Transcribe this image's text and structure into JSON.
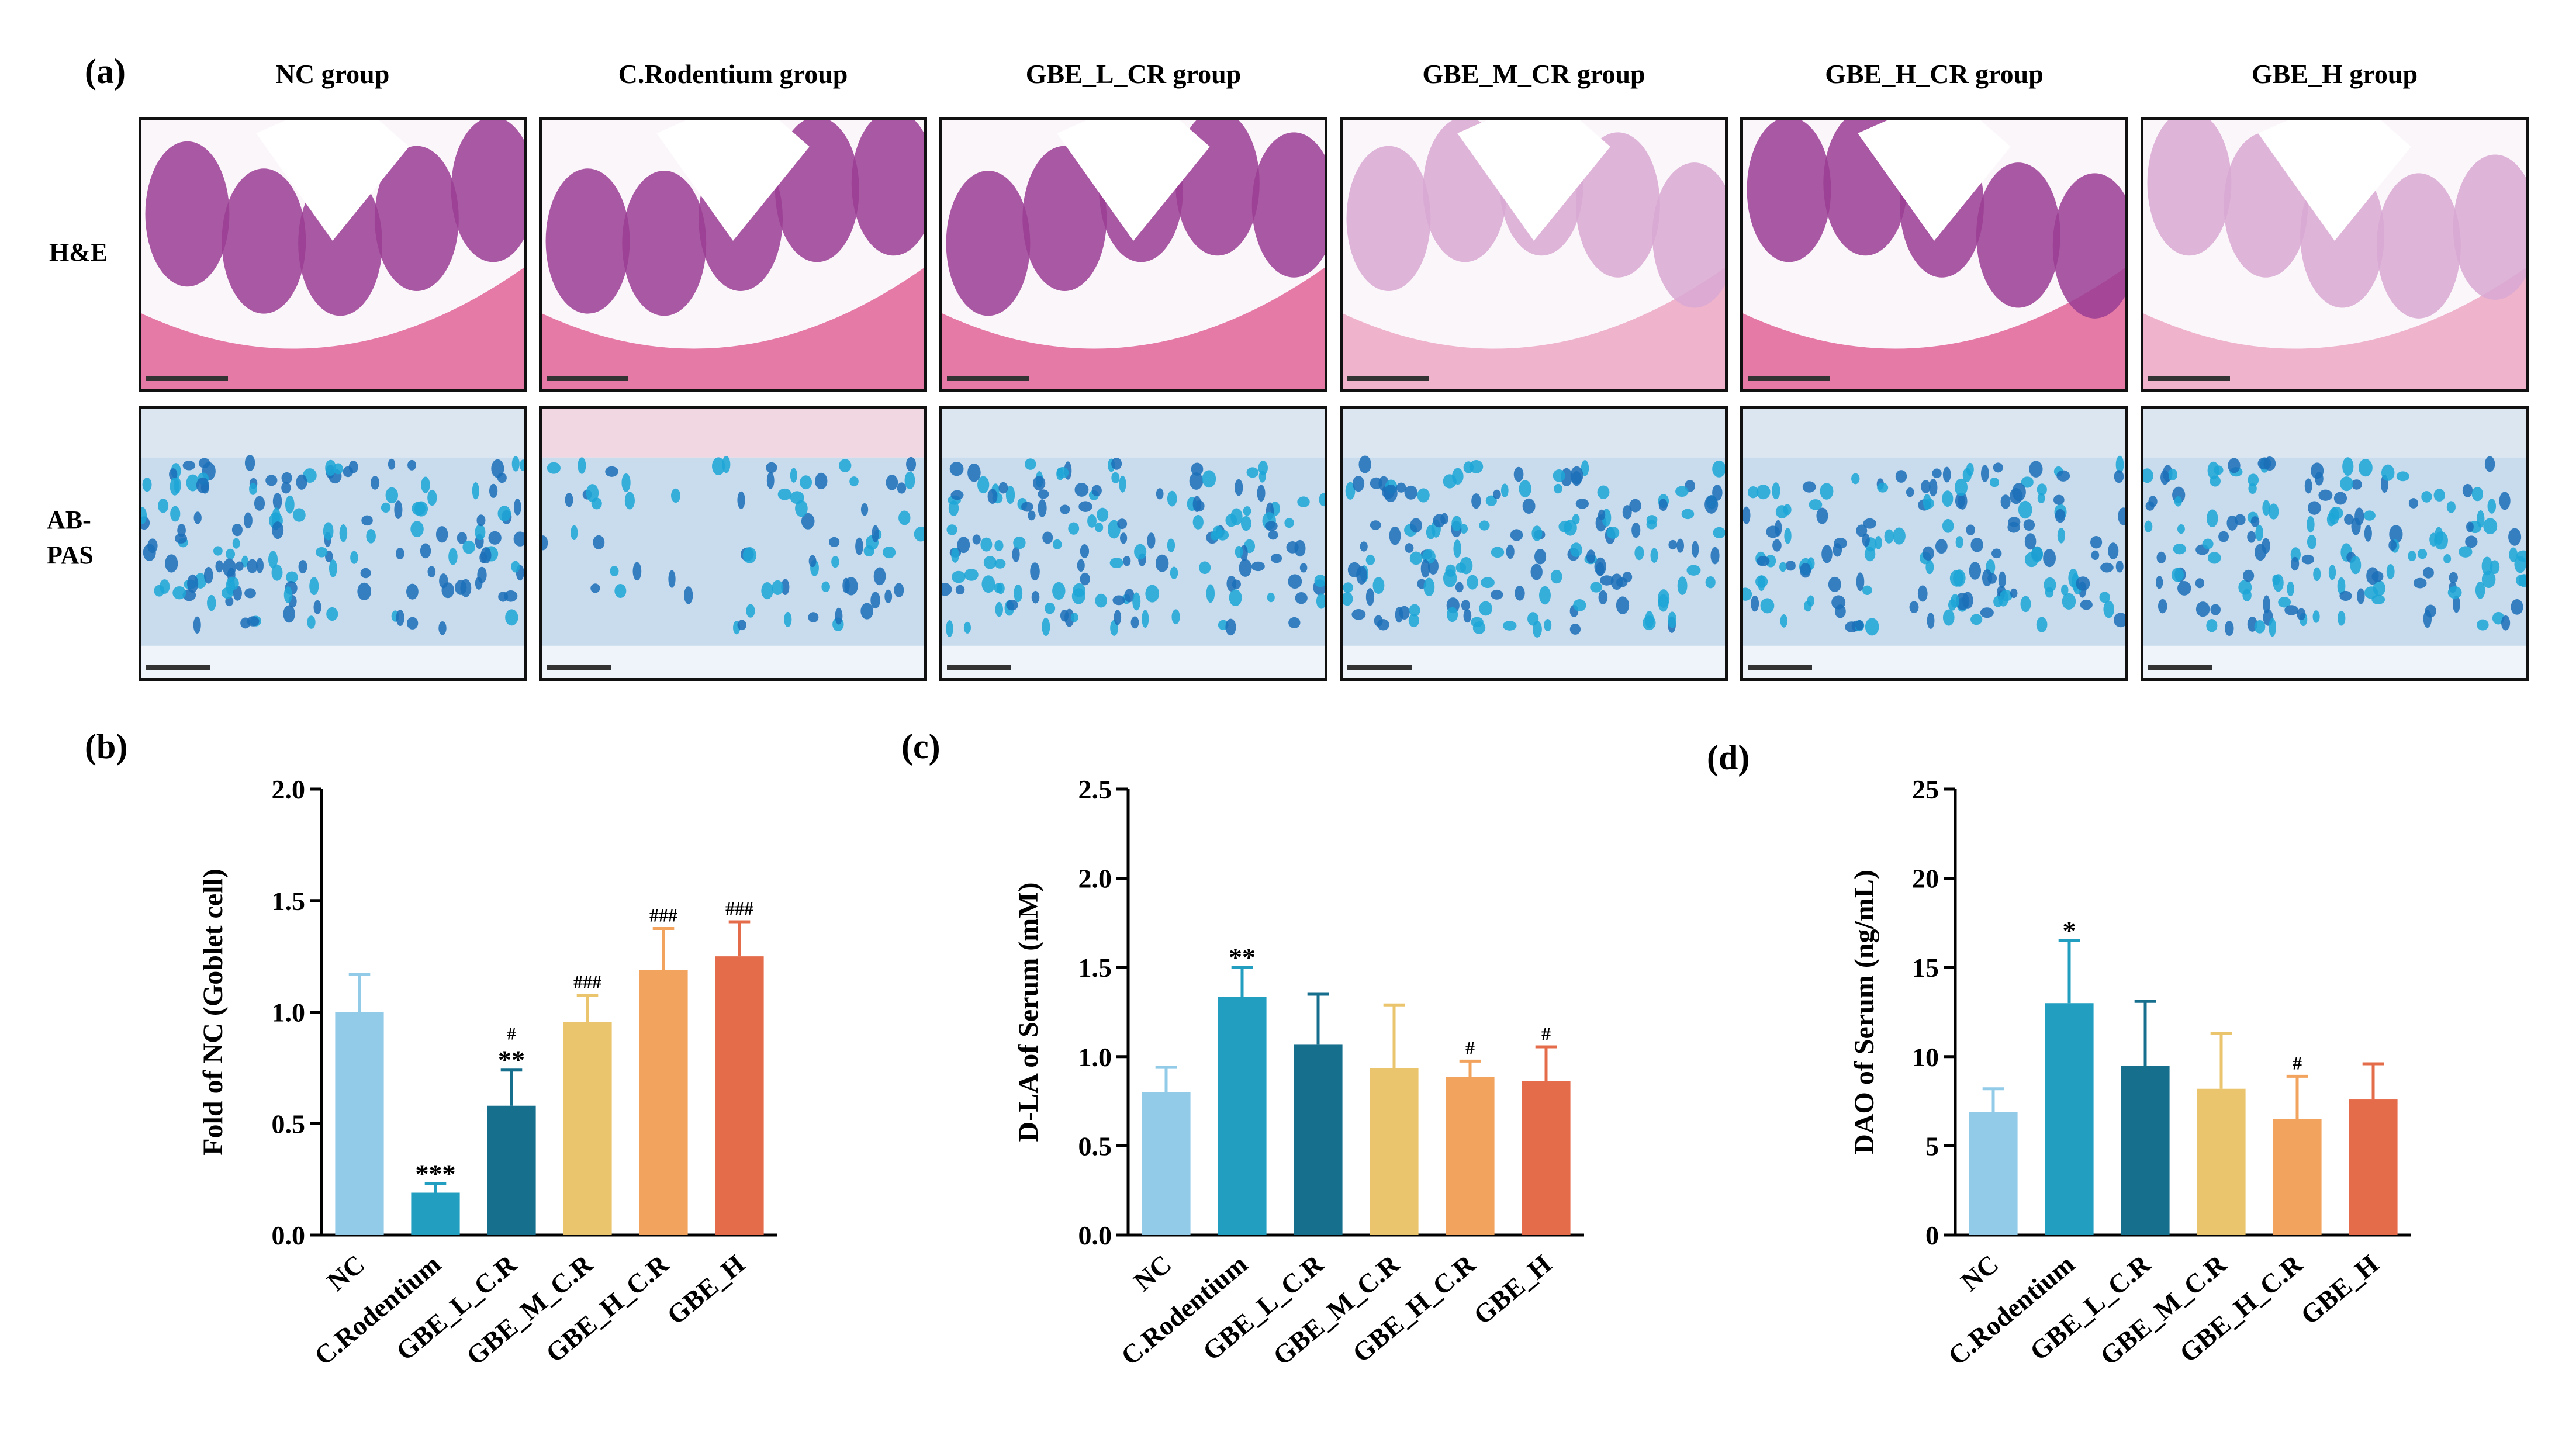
{
  "panel_a": {
    "letter": "(a)",
    "groups": [
      "NC group",
      "C.Rodentium group",
      "GBE_L_CR group",
      "GBE_M_CR group",
      "GBE_H_CR group",
      "GBE_H group"
    ],
    "rows": [
      "H&E",
      "AB-\nPAS"
    ]
  },
  "colors": [
    "#92cbe8",
    "#229fc0",
    "#176f8e",
    "#eac56d",
    "#f2a35e",
    "#e56c4b"
  ],
  "chart_data": [
    {
      "id": "b",
      "letter": "(b)",
      "type": "bar",
      "categories": [
        "NC",
        "C.Rodentium",
        "GBE_L_C.R",
        "GBE_M_C.R",
        "GBE_H_C.R",
        "GBE_H"
      ],
      "values": [
        1.0,
        0.19,
        0.58,
        0.955,
        1.19,
        1.25
      ],
      "errors": [
        0.17,
        0.04,
        0.16,
        0.12,
        0.185,
        0.155
      ],
      "annotations": [
        [
          "",
          ""
        ],
        [
          "***",
          ""
        ],
        [
          "**",
          "#"
        ],
        [
          "###",
          ""
        ],
        [
          "###",
          ""
        ],
        [
          "###",
          ""
        ]
      ],
      "ylabel": "Fold of NC (Goblet cell)",
      "ylim": [
        0,
        2.0
      ],
      "ticks": [
        "0.0",
        "0.5",
        "1.0",
        "1.5",
        "2.0"
      ],
      "tick_values": [
        0,
        0.5,
        1.0,
        1.5,
        2.0
      ]
    },
    {
      "id": "c",
      "letter": "(c)",
      "type": "bar",
      "categories": [
        "NC",
        "C.Rodentium",
        "GBE_L_C.R",
        "GBE_M_C.R",
        "GBE_H_C.R",
        "GBE_H"
      ],
      "values": [
        0.8,
        1.335,
        1.07,
        0.935,
        0.885,
        0.865
      ],
      "errors": [
        0.14,
        0.165,
        0.28,
        0.355,
        0.09,
        0.19
      ],
      "annotations": [
        [
          "",
          ""
        ],
        [
          "**",
          ""
        ],
        [
          "",
          ""
        ],
        [
          "",
          ""
        ],
        [
          "#",
          ""
        ],
        [
          "#",
          ""
        ]
      ],
      "ylabel": "D-LA of Serum (mM)",
      "ylim": [
        0,
        2.5
      ],
      "ticks": [
        "0.0",
        "0.5",
        "1.0",
        "1.5",
        "2.0",
        "2.5"
      ],
      "tick_values": [
        0,
        0.5,
        1.0,
        1.5,
        2.0,
        2.5
      ]
    },
    {
      "id": "d",
      "letter": "(d)",
      "type": "bar",
      "categories": [
        "NC",
        "C.Rodentium",
        "GBE_L_C.R",
        "GBE_M_C.R",
        "GBE_H_C.R",
        "GBE_H"
      ],
      "values": [
        6.9,
        13.0,
        9.5,
        8.2,
        6.5,
        7.6
      ],
      "errors": [
        1.3,
        3.5,
        3.6,
        3.1,
        2.4,
        2.0
      ],
      "annotations": [
        [
          "",
          ""
        ],
        [
          "*",
          ""
        ],
        [
          "",
          ""
        ],
        [
          "",
          ""
        ],
        [
          "#",
          ""
        ],
        [
          "",
          ""
        ]
      ],
      "ylabel": "DAO of Serum (ng/mL)",
      "ylim": [
        0,
        25
      ],
      "ticks": [
        "0",
        "5",
        "10",
        "15",
        "20",
        "25"
      ],
      "tick_values": [
        0,
        5,
        10,
        15,
        20,
        25
      ]
    }
  ]
}
